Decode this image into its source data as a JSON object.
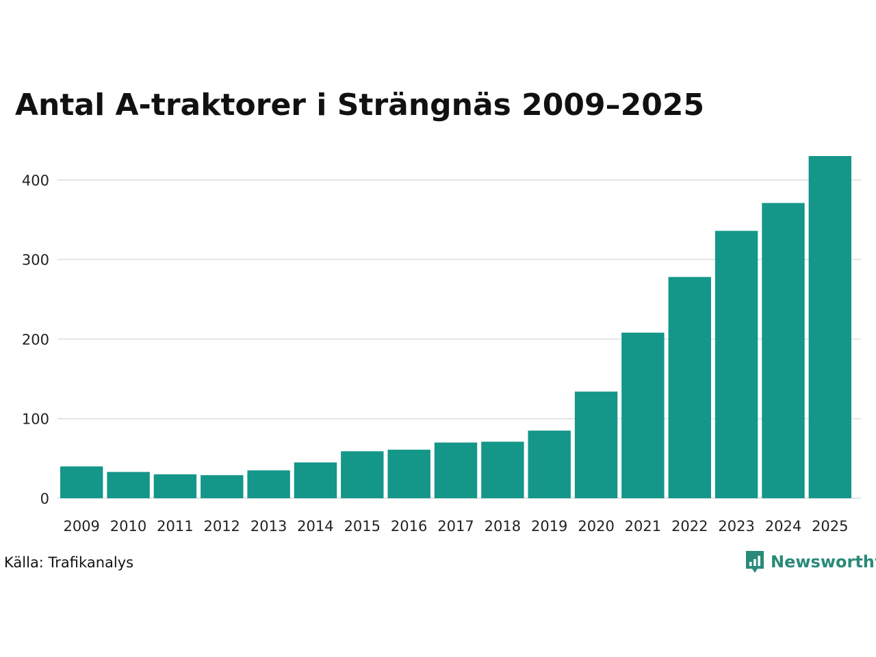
{
  "chart_data": {
    "type": "bar",
    "title": "Antal A-traktorer i Strängnäs 2009–2025",
    "categories": [
      "2009",
      "2010",
      "2011",
      "2012",
      "2013",
      "2014",
      "2015",
      "2016",
      "2017",
      "2018",
      "2019",
      "2020",
      "2021",
      "2022",
      "2023",
      "2024",
      "2025"
    ],
    "values": [
      40,
      33,
      30,
      29,
      35,
      45,
      59,
      61,
      70,
      71,
      85,
      134,
      208,
      278,
      336,
      371,
      430
    ],
    "ylim": [
      0,
      430
    ],
    "yticks": [
      "0",
      "100",
      "200",
      "300",
      "400"
    ],
    "xlabel": "",
    "ylabel": "",
    "grid": true,
    "bar_color": "#149689",
    "grid_color": "#e4e4e4"
  },
  "footer": {
    "source": "Källa: Trafikanalys",
    "brand": "Newsworthy",
    "brand_color": "#2a8a79",
    "brand_icon": "bar-chart-speech-icon"
  }
}
